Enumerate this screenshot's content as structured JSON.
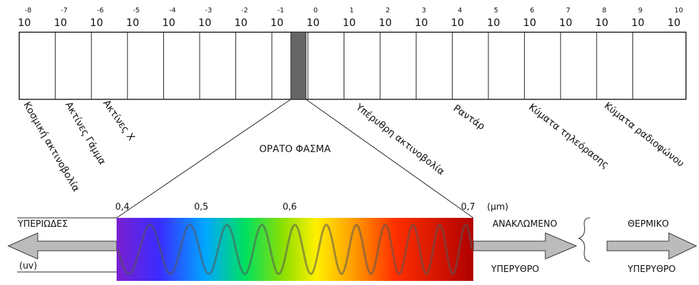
{
  "scale": {
    "ticks": [
      {
        "base": "10",
        "exponent": "-8"
      },
      {
        "base": "10",
        "exponent": "-7"
      },
      {
        "base": "10",
        "exponent": "-6"
      },
      {
        "base": "10",
        "exponent": "-5"
      },
      {
        "base": "10",
        "exponent": "-4"
      },
      {
        "base": "10",
        "exponent": "-3"
      },
      {
        "base": "10",
        "exponent": "-2"
      },
      {
        "base": "10",
        "exponent": "-1"
      },
      {
        "base": "10",
        "exponent": "0"
      },
      {
        "base": "10",
        "exponent": "1"
      },
      {
        "base": "10",
        "exponent": "2"
      },
      {
        "base": "10",
        "exponent": "3"
      },
      {
        "base": "10",
        "exponent": "4"
      },
      {
        "base": "10",
        "exponent": "5"
      },
      {
        "base": "10",
        "exponent": "6"
      },
      {
        "base": "10",
        "exponent": "7"
      },
      {
        "base": "10",
        "exponent": "8"
      },
      {
        "base": "10",
        "exponent": "9"
      },
      {
        "base": "10",
        "exponent": "10"
      }
    ]
  },
  "bands": [
    "Κοσμική ακτινοβολία",
    "Ακτίνες Γάμμα",
    "Ακτίνες Χ",
    "Υπέρυθρη ακτινοβολία",
    "Ραντάρ",
    "Κύματα τηλεόρασης",
    "Κύματα ραδιοφώνου"
  ],
  "visible": {
    "title": "ΟΡΑΤΟ ΦΑΣΜΑ",
    "ticks": [
      "0,4",
      "0,5",
      "0,6",
      "0,7"
    ],
    "unit": "(μm)"
  },
  "left": {
    "top": "ΥΠΕΡΙΩΔΕΣ",
    "bottom": "(uv)"
  },
  "right": {
    "top": "ΑΝΑΚΛΩΜΕΝΟ",
    "bottom": "ΥΠΕΡΥΘΡΟ"
  },
  "far_right": {
    "top": "ΘΕΡΜΙΚΟ",
    "bottom": "ΥΠΕΡΥΘΡΟ"
  }
}
